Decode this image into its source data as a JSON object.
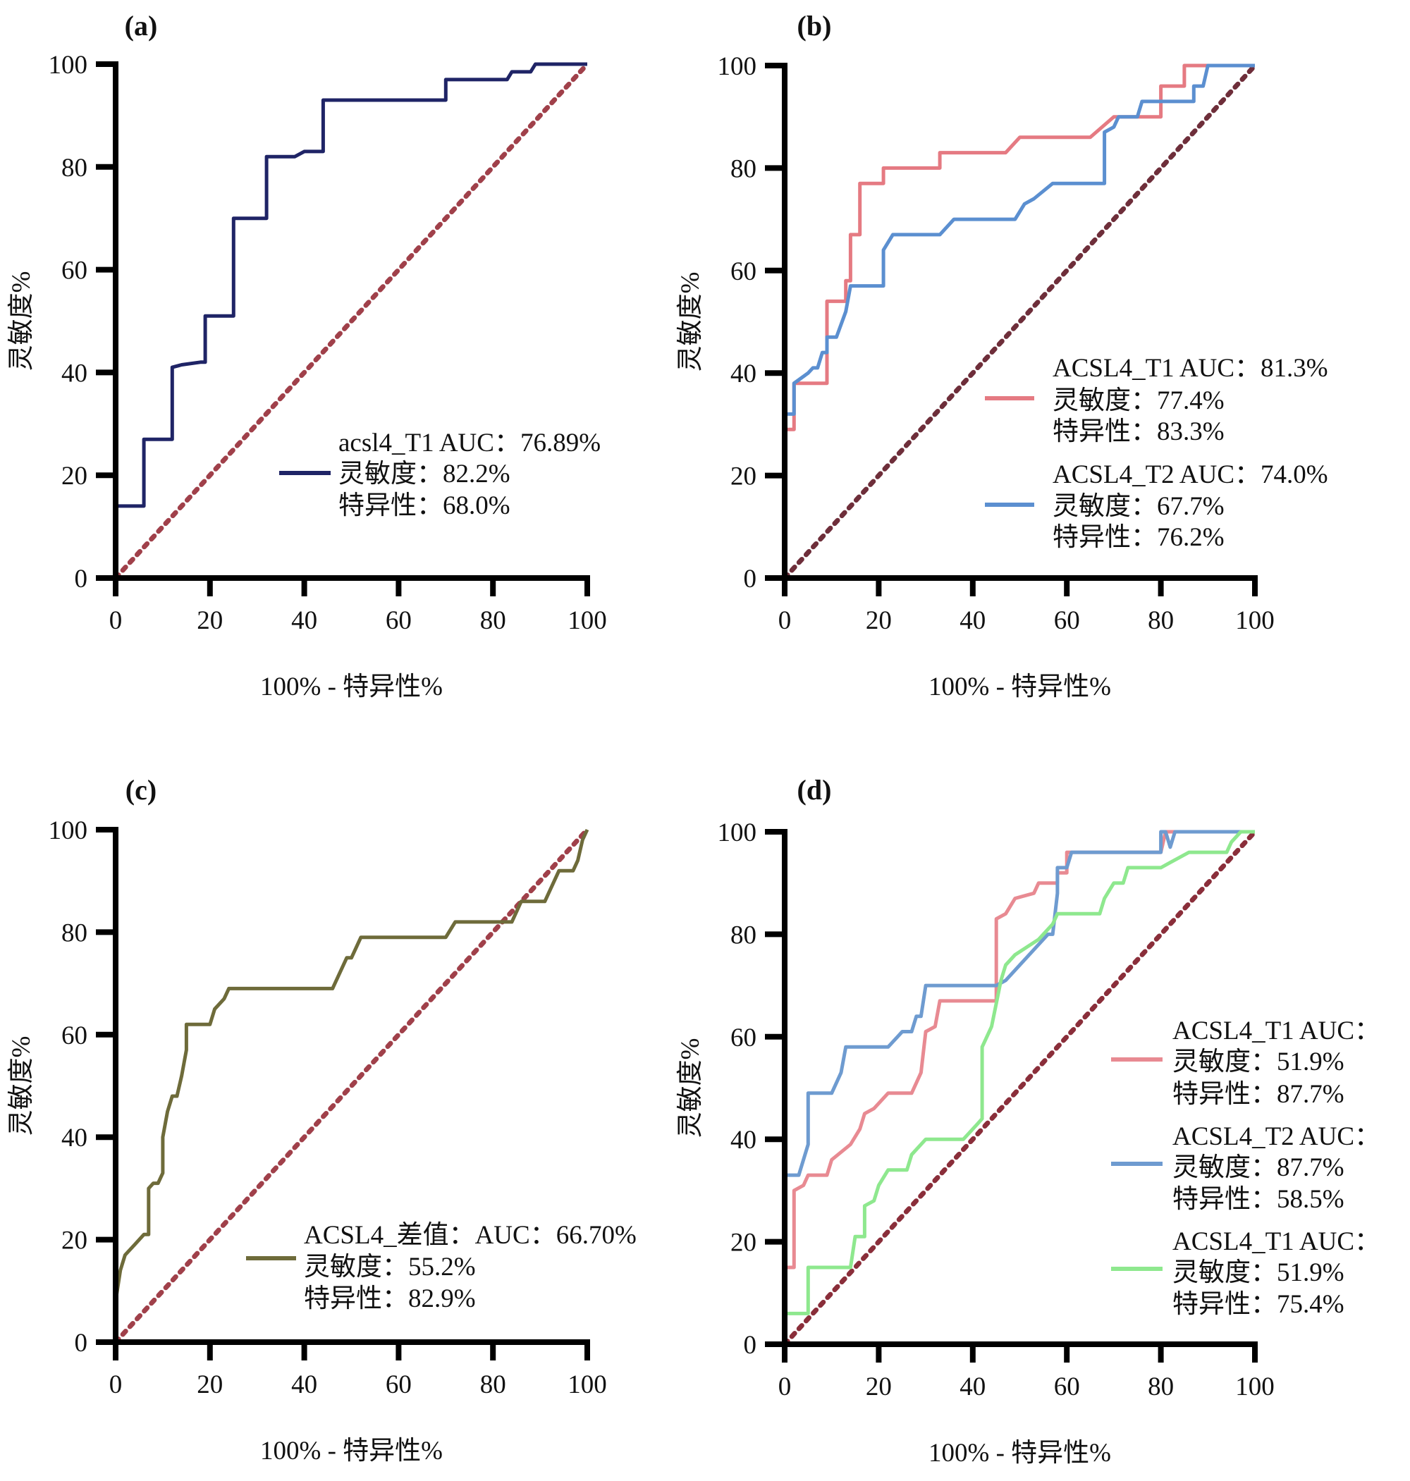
{
  "chart_data": [
    {
      "panel_label": "(a)",
      "type": "line",
      "xlabel": "100% - 特异性%",
      "ylabel": "灵敏度%",
      "xlim": [
        0,
        100
      ],
      "ylim": [
        0,
        100
      ],
      "xticks": [
        "0",
        "20",
        "40",
        "60",
        "80",
        "100"
      ],
      "yticks": [
        "0",
        "20",
        "40",
        "60",
        "80",
        "100"
      ],
      "grid": false,
      "reference_line": {
        "from": [
          0,
          0
        ],
        "to": [
          100,
          100
        ],
        "style": "dotted",
        "color": "#a0404a"
      },
      "series": [
        {
          "color": "#1f2466",
          "legend": [
            "acsl4_T1 AUC：76.89%",
            "灵敏度：82.2%",
            "特异性：68.0%"
          ],
          "points": [
            [
              0,
              0
            ],
            [
              0,
              14
            ],
            [
              6,
              14
            ],
            [
              6,
              27
            ],
            [
              12,
              27
            ],
            [
              12,
              41
            ],
            [
              14,
              41.5
            ],
            [
              18,
              42
            ],
            [
              19,
              42
            ],
            [
              19,
              51
            ],
            [
              25,
              51
            ],
            [
              25,
              70
            ],
            [
              32,
              70
            ],
            [
              32,
              82
            ],
            [
              38,
              82
            ],
            [
              40,
              83
            ],
            [
              44,
              83
            ],
            [
              44,
              93
            ],
            [
              70,
              93
            ],
            [
              70,
              97
            ],
            [
              83,
              97
            ],
            [
              84,
              98.5
            ],
            [
              88,
              98.5
            ],
            [
              89,
              100
            ],
            [
              100,
              100
            ]
          ]
        }
      ]
    },
    {
      "panel_label": "(b)",
      "type": "line",
      "xlabel": "100% - 特异性%",
      "ylabel": "灵敏度%",
      "xlim": [
        0,
        100
      ],
      "ylim": [
        0,
        100
      ],
      "xticks": [
        "0",
        "20",
        "40",
        "60",
        "80",
        "100"
      ],
      "yticks": [
        "0",
        "20",
        "40",
        "60",
        "80",
        "100"
      ],
      "grid": false,
      "reference_line": {
        "from": [
          0,
          0
        ],
        "to": [
          100,
          100
        ],
        "style": "dotted",
        "color": "#6e2e3a"
      },
      "series": [
        {
          "color": "#e57a82",
          "legend": [
            "ACSL4_T1 AUC：81.3%",
            "灵敏度：77.4%",
            "特异性：83.3%"
          ],
          "points": [
            [
              0,
              0
            ],
            [
              0,
              29
            ],
            [
              2,
              29
            ],
            [
              2,
              38
            ],
            [
              9,
              38
            ],
            [
              9,
              54
            ],
            [
              13,
              54
            ],
            [
              13,
              58
            ],
            [
              14,
              58
            ],
            [
              14,
              67
            ],
            [
              16,
              67
            ],
            [
              16,
              77
            ],
            [
              21,
              77
            ],
            [
              21,
              80
            ],
            [
              33,
              80
            ],
            [
              33,
              83
            ],
            [
              47,
              83
            ],
            [
              50,
              86
            ],
            [
              65,
              86
            ],
            [
              70,
              90
            ],
            [
              80,
              90
            ],
            [
              80,
              96
            ],
            [
              85,
              96
            ],
            [
              85,
              100
            ],
            [
              100,
              100
            ]
          ]
        },
        {
          "color": "#5b8fd0",
          "legend": [
            "ACSL4_T2 AUC：74.0%",
            "灵敏度：67.7%",
            "特异性：76.2%"
          ],
          "points": [
            [
              0,
              0
            ],
            [
              0,
              32
            ],
            [
              2,
              32
            ],
            [
              2,
              38
            ],
            [
              5,
              40
            ],
            [
              6,
              41
            ],
            [
              7,
              41
            ],
            [
              8,
              44
            ],
            [
              9,
              44
            ],
            [
              9,
              47
            ],
            [
              11,
              47
            ],
            [
              13,
              52
            ],
            [
              14,
              57
            ],
            [
              21,
              57
            ],
            [
              21,
              64
            ],
            [
              23,
              67
            ],
            [
              33,
              67
            ],
            [
              36,
              70
            ],
            [
              49,
              70
            ],
            [
              51,
              73
            ],
            [
              53,
              74
            ],
            [
              57,
              77
            ],
            [
              68,
              77
            ],
            [
              68,
              87
            ],
            [
              70,
              88
            ],
            [
              71,
              90
            ],
            [
              75,
              90
            ],
            [
              76,
              93
            ],
            [
              87,
              93
            ],
            [
              87,
              96
            ],
            [
              89,
              96
            ],
            [
              90,
              100
            ],
            [
              100,
              100
            ]
          ]
        }
      ]
    },
    {
      "panel_label": "(c)",
      "type": "line",
      "xlabel": "100% - 特异性%",
      "ylabel": "灵敏度%",
      "xlim": [
        0,
        100
      ],
      "ylim": [
        0,
        100
      ],
      "xticks": [
        "0",
        "20",
        "40",
        "60",
        "80",
        "100"
      ],
      "yticks": [
        "0",
        "20",
        "40",
        "60",
        "80",
        "100"
      ],
      "grid": false,
      "reference_line": {
        "from": [
          0,
          0
        ],
        "to": [
          100,
          100
        ],
        "style": "dotted",
        "color": "#a0404a"
      },
      "series": [
        {
          "color": "#6e6b3a",
          "legend": [
            "ACSL4_差值：AUC：66.70%",
            "灵敏度：55.2%",
            "特异性：82.9%"
          ],
          "points": [
            [
              0,
              0
            ],
            [
              0,
              8
            ],
            [
              1,
              14
            ],
            [
              2,
              17
            ],
            [
              4,
              19
            ],
            [
              6,
              21
            ],
            [
              7,
              21
            ],
            [
              7,
              30
            ],
            [
              8,
              31
            ],
            [
              9,
              31
            ],
            [
              10,
              33
            ],
            [
              10,
              40
            ],
            [
              11,
              45
            ],
            [
              12,
              48
            ],
            [
              13,
              48
            ],
            [
              14,
              52
            ],
            [
              15,
              57
            ],
            [
              15,
              62
            ],
            [
              20,
              62
            ],
            [
              21,
              65
            ],
            [
              23,
              67
            ],
            [
              24,
              69
            ],
            [
              46,
              69
            ],
            [
              49,
              75
            ],
            [
              50,
              75
            ],
            [
              52,
              79
            ],
            [
              70,
              79
            ],
            [
              72,
              82
            ],
            [
              84,
              82
            ],
            [
              86,
              86
            ],
            [
              91,
              86
            ],
            [
              94,
              92
            ],
            [
              97,
              92
            ],
            [
              98,
              94
            ],
            [
              99,
              98
            ],
            [
              100,
              100
            ]
          ]
        }
      ]
    },
    {
      "panel_label": "(d)",
      "type": "line",
      "xlabel": "100% - 特异性%",
      "ylabel": "灵敏度%",
      "xlim": [
        0,
        100
      ],
      "ylim": [
        0,
        100
      ],
      "xticks": [
        "0",
        "20",
        "40",
        "60",
        "80",
        "100"
      ],
      "yticks": [
        "0",
        "20",
        "40",
        "60",
        "80",
        "100"
      ],
      "grid": false,
      "reference_line": {
        "from": [
          0,
          0
        ],
        "to": [
          100,
          100
        ],
        "style": "dotted",
        "color": "#8a2e3a"
      },
      "series": [
        {
          "color": "#e88a92",
          "legend": [
            "ACSL4_T1 AUC：",
            "灵敏度：51.9%",
            "特异性：87.7%"
          ],
          "points": [
            [
              0,
              0
            ],
            [
              0,
              15
            ],
            [
              2,
              15
            ],
            [
              2,
              30
            ],
            [
              4,
              31
            ],
            [
              5,
              33
            ],
            [
              9,
              33
            ],
            [
              10,
              36
            ],
            [
              14,
              39
            ],
            [
              16,
              42
            ],
            [
              17,
              45
            ],
            [
              19,
              46
            ],
            [
              22,
              49
            ],
            [
              27,
              49
            ],
            [
              29,
              53
            ],
            [
              30,
              61
            ],
            [
              32,
              62
            ],
            [
              33,
              67
            ],
            [
              45,
              67
            ],
            [
              45,
              83
            ],
            [
              47,
              84
            ],
            [
              49,
              87
            ],
            [
              53,
              88
            ],
            [
              54,
              90
            ],
            [
              58,
              90
            ],
            [
              58,
              92
            ],
            [
              60,
              92
            ],
            [
              60,
              96
            ],
            [
              80,
              96
            ],
            [
              81,
              100
            ],
            [
              100,
              100
            ]
          ]
        },
        {
          "color": "#6e9bd0",
          "legend": [
            "ACSL4_T2 AUC：",
            "灵敏度：87.7%",
            "特异性：58.5%"
          ],
          "points": [
            [
              0,
              0
            ],
            [
              0,
              33
            ],
            [
              3,
              33
            ],
            [
              5,
              39
            ],
            [
              5,
              49
            ],
            [
              10,
              49
            ],
            [
              12,
              53
            ],
            [
              13,
              58
            ],
            [
              22,
              58
            ],
            [
              25,
              61
            ],
            [
              27,
              61
            ],
            [
              28,
              64
            ],
            [
              29,
              64
            ],
            [
              30,
              70
            ],
            [
              45,
              70
            ],
            [
              47,
              71
            ],
            [
              56,
              80
            ],
            [
              57,
              80
            ],
            [
              58,
              88
            ],
            [
              58,
              93
            ],
            [
              60,
              93
            ],
            [
              61,
              96
            ],
            [
              80,
              96
            ],
            [
              80,
              100
            ],
            [
              81,
              100
            ],
            [
              82,
              97
            ],
            [
              83,
              100
            ],
            [
              100,
              100
            ]
          ]
        },
        {
          "color": "#8ee88e",
          "legend": [
            "ACSL4_T1 AUC：",
            "灵敏度：51.9%",
            "特异性：75.4%"
          ],
          "points": [
            [
              0,
              0
            ],
            [
              0,
              6
            ],
            [
              5,
              6
            ],
            [
              5,
              15
            ],
            [
              14,
              15
            ],
            [
              15,
              21
            ],
            [
              17,
              21
            ],
            [
              17,
              27
            ],
            [
              19,
              28
            ],
            [
              20,
              31
            ],
            [
              22,
              34
            ],
            [
              26,
              34
            ],
            [
              27,
              37
            ],
            [
              30,
              40
            ],
            [
              38,
              40
            ],
            [
              41,
              43
            ],
            [
              42,
              44
            ],
            [
              42,
              58
            ],
            [
              44,
              62
            ],
            [
              46,
              71
            ],
            [
              47,
              74
            ],
            [
              49,
              76
            ],
            [
              54,
              79
            ],
            [
              57,
              82
            ],
            [
              58,
              84
            ],
            [
              67,
              84
            ],
            [
              68,
              87
            ],
            [
              70,
              90
            ],
            [
              72,
              90
            ],
            [
              73,
              93
            ],
            [
              80,
              93
            ],
            [
              82,
              94
            ],
            [
              86,
              96
            ],
            [
              94,
              96
            ],
            [
              95,
              98
            ],
            [
              97,
              100
            ],
            [
              100,
              100
            ]
          ]
        }
      ]
    }
  ]
}
